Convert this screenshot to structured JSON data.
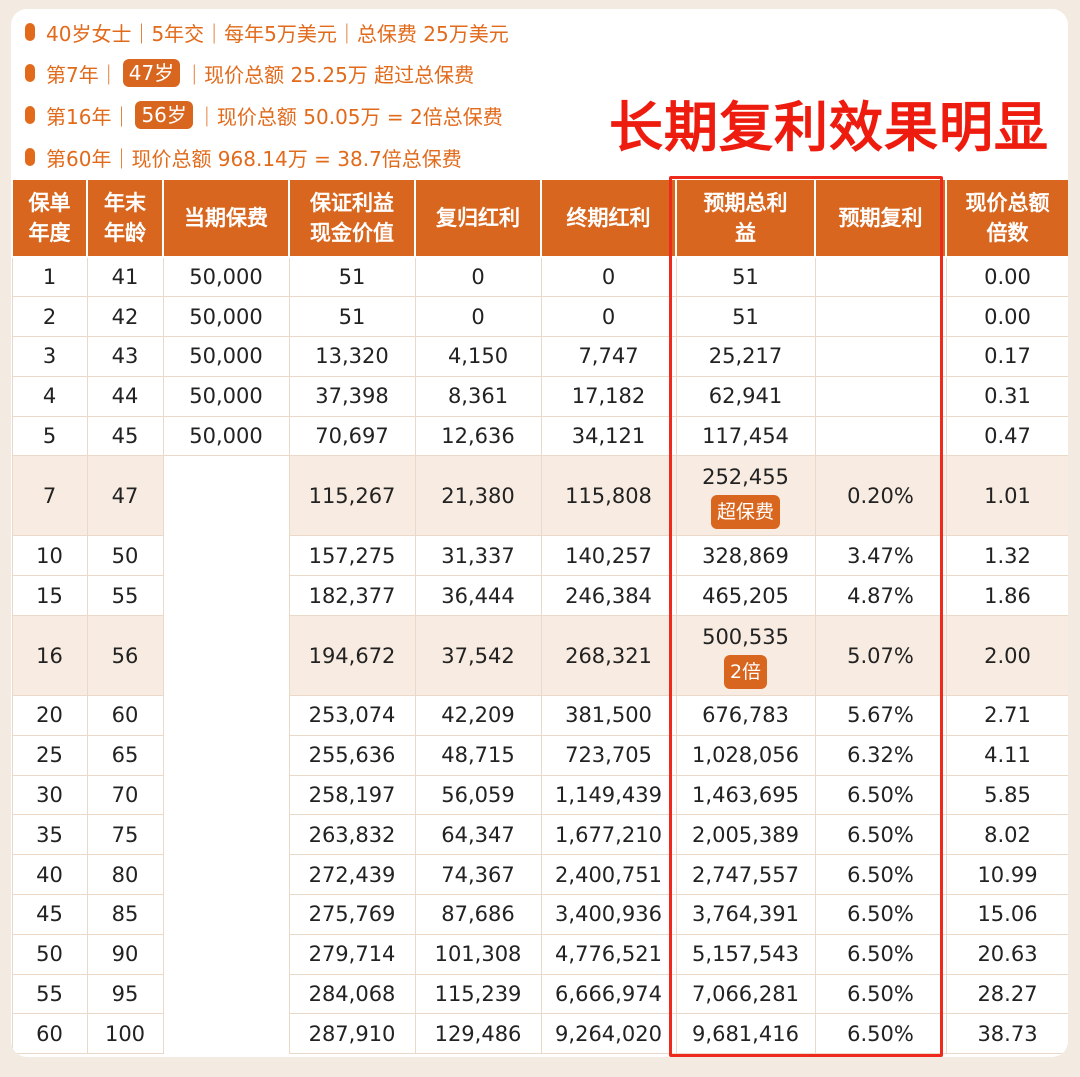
{
  "summary": {
    "line1": "40岁女士｜5年交｜每年5万美元｜总保费 25万美元",
    "line2_a": "第7年｜",
    "line2_pill": "47岁",
    "line2_b": "｜现价总额 25.25万 超过总保费",
    "line3_a": "第16年｜",
    "line3_pill": "56岁",
    "line3_b": "｜现价总额 50.05万 = 2倍总保费",
    "line4": "第60年｜现价总额 968.14万 = 38.7倍总保费"
  },
  "headline": "长期复利效果明显",
  "table": {
    "headers": [
      "保单\n年度",
      "年末\n年龄",
      "当期保费",
      "保证利益\n现金价值",
      "复归红利",
      "终期红利",
      "预期总利\n益",
      "预期复利",
      "现价总额\n倍数"
    ],
    "rows": [
      {
        "year": "1",
        "age": "41",
        "premium": "50,000",
        "guaranteed": "51",
        "reversionary": "0",
        "terminal": "0",
        "total": "51",
        "tag": "",
        "rate": "",
        "multiple": "0.00"
      },
      {
        "year": "2",
        "age": "42",
        "premium": "50,000",
        "guaranteed": "51",
        "reversionary": "0",
        "terminal": "0",
        "total": "51",
        "tag": "",
        "rate": "",
        "multiple": "0.00"
      },
      {
        "year": "3",
        "age": "43",
        "premium": "50,000",
        "guaranteed": "13,320",
        "reversionary": "4,150",
        "terminal": "7,747",
        "total": "25,217",
        "tag": "",
        "rate": "",
        "multiple": "0.17"
      },
      {
        "year": "4",
        "age": "44",
        "premium": "50,000",
        "guaranteed": "37,398",
        "reversionary": "8,361",
        "terminal": "17,182",
        "total": "62,941",
        "tag": "",
        "rate": "",
        "multiple": "0.31"
      },
      {
        "year": "5",
        "age": "45",
        "premium": "50,000",
        "guaranteed": "70,697",
        "reversionary": "12,636",
        "terminal": "34,121",
        "total": "117,454",
        "tag": "",
        "rate": "",
        "multiple": "0.47"
      },
      {
        "year": "7",
        "age": "47",
        "premium": "",
        "guaranteed": "115,267",
        "reversionary": "21,380",
        "terminal": "115,808",
        "total": "252,455",
        "tag": "超保费",
        "rate": "0.20%",
        "multiple": "1.01"
      },
      {
        "year": "10",
        "age": "50",
        "premium": "",
        "guaranteed": "157,275",
        "reversionary": "31,337",
        "terminal": "140,257",
        "total": "328,869",
        "tag": "",
        "rate": "3.47%",
        "multiple": "1.32"
      },
      {
        "year": "15",
        "age": "55",
        "premium": "",
        "guaranteed": "182,377",
        "reversionary": "36,444",
        "terminal": "246,384",
        "total": "465,205",
        "tag": "",
        "rate": "4.87%",
        "multiple": "1.86"
      },
      {
        "year": "16",
        "age": "56",
        "premium": "",
        "guaranteed": "194,672",
        "reversionary": "37,542",
        "terminal": "268,321",
        "total": "500,535",
        "tag": "2倍",
        "rate": "5.07%",
        "multiple": "2.00"
      },
      {
        "year": "20",
        "age": "60",
        "premium": "",
        "guaranteed": "253,074",
        "reversionary": "42,209",
        "terminal": "381,500",
        "total": "676,783",
        "tag": "",
        "rate": "5.67%",
        "multiple": "2.71"
      },
      {
        "year": "25",
        "age": "65",
        "premium": "",
        "guaranteed": "255,636",
        "reversionary": "48,715",
        "terminal": "723,705",
        "total": "1,028,056",
        "tag": "",
        "rate": "6.32%",
        "multiple": "4.11"
      },
      {
        "year": "30",
        "age": "70",
        "premium": "",
        "guaranteed": "258,197",
        "reversionary": "56,059",
        "terminal": "1,149,439",
        "total": "1,463,695",
        "tag": "",
        "rate": "6.50%",
        "multiple": "5.85"
      },
      {
        "year": "35",
        "age": "75",
        "premium": "",
        "guaranteed": "263,832",
        "reversionary": "64,347",
        "terminal": "1,677,210",
        "total": "2,005,389",
        "tag": "",
        "rate": "6.50%",
        "multiple": "8.02"
      },
      {
        "year": "40",
        "age": "80",
        "premium": "",
        "guaranteed": "272,439",
        "reversionary": "74,367",
        "terminal": "2,400,751",
        "total": "2,747,557",
        "tag": "",
        "rate": "6.50%",
        "multiple": "10.99"
      },
      {
        "year": "45",
        "age": "85",
        "premium": "",
        "guaranteed": "275,769",
        "reversionary": "87,686",
        "terminal": "3,400,936",
        "total": "3,764,391",
        "tag": "",
        "rate": "6.50%",
        "multiple": "15.06"
      },
      {
        "year": "50",
        "age": "90",
        "premium": "",
        "guaranteed": "279,714",
        "reversionary": "101,308",
        "terminal": "4,776,521",
        "total": "5,157,543",
        "tag": "",
        "rate": "6.50%",
        "multiple": "20.63"
      },
      {
        "year": "55",
        "age": "95",
        "premium": "",
        "guaranteed": "284,068",
        "reversionary": "115,239",
        "terminal": "6,666,974",
        "total": "7,066,281",
        "tag": "",
        "rate": "6.50%",
        "multiple": "28.27"
      },
      {
        "year": "60",
        "age": "100",
        "premium": "",
        "guaranteed": "287,910",
        "reversionary": "129,486",
        "terminal": "9,264,020",
        "total": "9,681,416",
        "tag": "",
        "rate": "6.50%",
        "multiple": "38.73"
      }
    ]
  },
  "colors": {
    "accent": "#d9661e",
    "headline": "#ee1c0e",
    "highlight_box": "#ee2a1c",
    "highlight_row": "#f8ece2",
    "page_bg": "#f3ebe2"
  }
}
